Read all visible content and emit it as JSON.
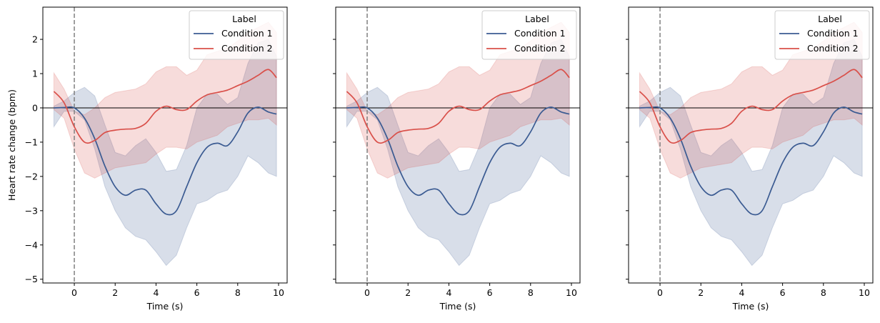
{
  "chart_data": [
    {
      "type": "line",
      "xlabel": "Time (s)",
      "ylabel": "Heart rate change (bpm)",
      "xlim": [
        -1.54,
        10.42
      ],
      "ylim": [
        -5.11,
        2.94
      ],
      "xticks": [
        0,
        2,
        4,
        6,
        8,
        10
      ],
      "xtick_labels": [
        "0",
        "2",
        "4",
        "6",
        "8",
        "10"
      ],
      "yticks": [
        -5,
        -4,
        -3,
        -2,
        -1,
        0,
        1,
        2
      ],
      "ytick_labels": [
        "−5",
        "−4",
        "−3",
        "−2",
        "−1",
        "0",
        "1",
        "2"
      ],
      "show_ytick_labels": true,
      "legend": {
        "title": "Label",
        "placement": "top-right"
      },
      "reference_lines": {
        "vertical_dashed_x": 0,
        "horizontal_y": 0
      },
      "x": [
        -1,
        -0.5,
        0,
        0.5,
        1,
        1.5,
        2,
        2.5,
        3,
        3.5,
        4,
        4.5,
        5,
        5.5,
        6,
        6.5,
        7,
        7.5,
        8,
        8.5,
        9,
        9.5,
        9.9
      ],
      "series": [
        {
          "name": "Condition 1",
          "color": "#3b5b92",
          "mean": [
            0,
            0.01,
            0,
            -0.3,
            -0.9,
            -1.7,
            -2.3,
            -2.55,
            -2.4,
            -2.4,
            -2.8,
            -3.1,
            -3.0,
            -2.3,
            -1.6,
            -1.15,
            -1.03,
            -1.1,
            -0.7,
            -0.15,
            0.02,
            -0.12,
            -0.18
          ],
          "lower": [
            -0.55,
            -0.1,
            -0.1,
            -0.35,
            -1.2,
            -2.3,
            -3.0,
            -3.5,
            -3.75,
            -3.85,
            -4.2,
            -4.6,
            -4.3,
            -3.5,
            -2.8,
            -2.7,
            -2.5,
            -2.4,
            -2.0,
            -1.4,
            -1.6,
            -1.9,
            -2.0
          ],
          "upper": [
            0.05,
            0.2,
            0.45,
            0.6,
            0.35,
            -0.5,
            -1.3,
            -1.4,
            -1.1,
            -0.9,
            -1.3,
            -1.85,
            -1.8,
            -1.1,
            0.0,
            0.4,
            0.4,
            0.1,
            0.3,
            1.3,
            1.9,
            2.0,
            1.5
          ]
        },
        {
          "name": "Condition 2",
          "color": "#d9504a",
          "mean": [
            0.48,
            0.15,
            -0.55,
            -1.0,
            -0.95,
            -0.72,
            -0.65,
            -0.62,
            -0.6,
            -0.45,
            -0.1,
            0.05,
            -0.05,
            -0.05,
            0.2,
            0.38,
            0.45,
            0.52,
            0.65,
            0.78,
            0.95,
            1.12,
            0.88
          ],
          "lower": [
            -0.05,
            -0.3,
            -1.2,
            -1.9,
            -2.05,
            -1.9,
            -1.75,
            -1.7,
            -1.65,
            -1.6,
            -1.35,
            -1.15,
            -1.15,
            -1.2,
            -1.0,
            -0.9,
            -0.8,
            -0.55,
            -0.45,
            -0.35,
            -0.35,
            -0.3,
            -0.5
          ],
          "upper": [
            1.02,
            0.55,
            -0.1,
            -0.2,
            0.0,
            0.3,
            0.45,
            0.5,
            0.55,
            0.7,
            1.05,
            1.2,
            1.2,
            0.95,
            1.1,
            1.55,
            1.65,
            1.75,
            1.95,
            2.2,
            2.35,
            2.5,
            2.2
          ]
        }
      ]
    },
    {
      "type": "line",
      "xlabel": "Time (s)",
      "ylabel": "",
      "show_ytick_labels": false,
      "same_data_as_panel": 1,
      "legend": {
        "title": "Label",
        "placement": "top-right",
        "entries": [
          "Condition 1",
          "Condition 2"
        ]
      }
    },
    {
      "type": "line",
      "xlabel": "Time (s)",
      "ylabel": "",
      "show_ytick_labels": false,
      "same_data_as_panel": 1,
      "legend": {
        "title": "Label",
        "placement": "top-right",
        "entries": [
          "Condition 1",
          "Condition 2"
        ]
      }
    }
  ]
}
